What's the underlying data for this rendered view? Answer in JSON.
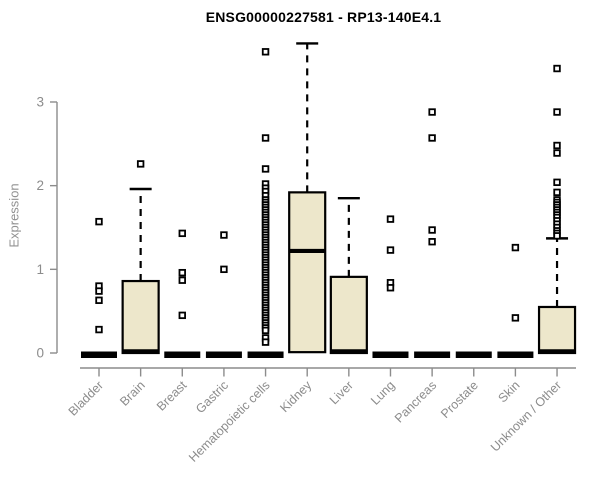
{
  "chart_data": {
    "type": "boxplot",
    "title": "ENSG00000227581 - RP13-140E4.1",
    "ylabel": "Expression",
    "xlabel": "",
    "yticks": [
      0,
      1,
      2,
      3
    ],
    "ylim": [
      0,
      3.75
    ],
    "grid": false,
    "legend": null,
    "colors": {
      "box_fill": "#ede7cb",
      "box_stroke": "#000000",
      "axis": "#8c8c8c",
      "tick_label": "#8c8c8c",
      "title": "#000000",
      "outlier_fill": "#ffffff"
    },
    "categories": [
      "Bladder",
      "Brain",
      "Breast",
      "Gastric",
      "Hematopoietic cells",
      "Kidney",
      "Liver",
      "Lung",
      "Pancreas",
      "Prostate",
      "Skin",
      "Unknown / Other"
    ],
    "boxes": [
      {
        "label": "Bladder",
        "q1": 0,
        "median": 0,
        "q3": 0,
        "whisker_low": 0,
        "whisker_high": 0,
        "outliers": [
          1.57,
          0.8,
          0.74,
          0.63,
          0.28
        ]
      },
      {
        "label": "Brain",
        "q1": 0,
        "median": 0.02,
        "q3": 0.86,
        "whisker_low": 0,
        "whisker_high": 1.96,
        "outliers": [
          2.26
        ]
      },
      {
        "label": "Breast",
        "q1": 0,
        "median": 0,
        "q3": 0,
        "whisker_low": 0,
        "whisker_high": 0,
        "outliers": [
          1.43,
          0.96,
          0.87,
          0.45
        ]
      },
      {
        "label": "Gastric",
        "q1": 0,
        "median": 0,
        "q3": 0,
        "whisker_low": 0,
        "whisker_high": 0,
        "outliers": [
          1.41,
          1.0
        ]
      },
      {
        "label": "Hematopoietic cells",
        "q1": 0,
        "median": 0,
        "q3": 0,
        "whisker_low": 0,
        "whisker_high": 0,
        "outliers": [
          3.6,
          2.57,
          2.2,
          2.02,
          1.97,
          1.93,
          1.88,
          1.83,
          1.8,
          1.77,
          1.74,
          1.71,
          1.68,
          1.65,
          1.62,
          1.59,
          1.56,
          1.53,
          1.5,
          1.47,
          1.44,
          1.41,
          1.38,
          1.35,
          1.32,
          1.29,
          1.26,
          1.23,
          1.2,
          1.17,
          1.14,
          1.11,
          1.08,
          1.05,
          1.02,
          0.99,
          0.96,
          0.93,
          0.9,
          0.87,
          0.84,
          0.81,
          0.78,
          0.75,
          0.72,
          0.69,
          0.66,
          0.63,
          0.6,
          0.57,
          0.54,
          0.51,
          0.48,
          0.45,
          0.42,
          0.39,
          0.36,
          0.33,
          0.3,
          0.27,
          0.18,
          0.13
        ]
      },
      {
        "label": "Kidney",
        "q1": 0.01,
        "median": 1.22,
        "q3": 1.92,
        "whisker_low": 0,
        "whisker_high": 3.7,
        "outliers": []
      },
      {
        "label": "Liver",
        "q1": 0,
        "median": 0.02,
        "q3": 0.91,
        "whisker_low": 0,
        "whisker_high": 1.85,
        "outliers": []
      },
      {
        "label": "Lung",
        "q1": 0,
        "median": 0,
        "q3": 0,
        "whisker_low": 0,
        "whisker_high": 0,
        "outliers": [
          1.6,
          1.23,
          0.84,
          0.78
        ]
      },
      {
        "label": "Pancreas",
        "q1": 0,
        "median": 0,
        "q3": 0,
        "whisker_low": 0,
        "whisker_high": 0,
        "outliers": [
          2.88,
          2.57,
          1.47,
          1.33
        ]
      },
      {
        "label": "Prostate",
        "q1": 0,
        "median": 0,
        "q3": 0,
        "whisker_low": 0,
        "whisker_high": 0,
        "outliers": []
      },
      {
        "label": "Skin",
        "q1": 0,
        "median": 0,
        "q3": 0,
        "whisker_low": 0,
        "whisker_high": 0,
        "outliers": [
          1.26,
          0.42
        ]
      },
      {
        "label": "Unknown / Other",
        "q1": 0,
        "median": 0.02,
        "q3": 0.55,
        "whisker_low": 0,
        "whisker_high": 1.37,
        "outliers": [
          3.4,
          2.88,
          2.48,
          2.39,
          2.04,
          1.92,
          1.83,
          1.8,
          1.77,
          1.74,
          1.71,
          1.68,
          1.65,
          1.62,
          1.58,
          1.54,
          1.5,
          1.46,
          1.43,
          1.4
        ]
      }
    ]
  }
}
